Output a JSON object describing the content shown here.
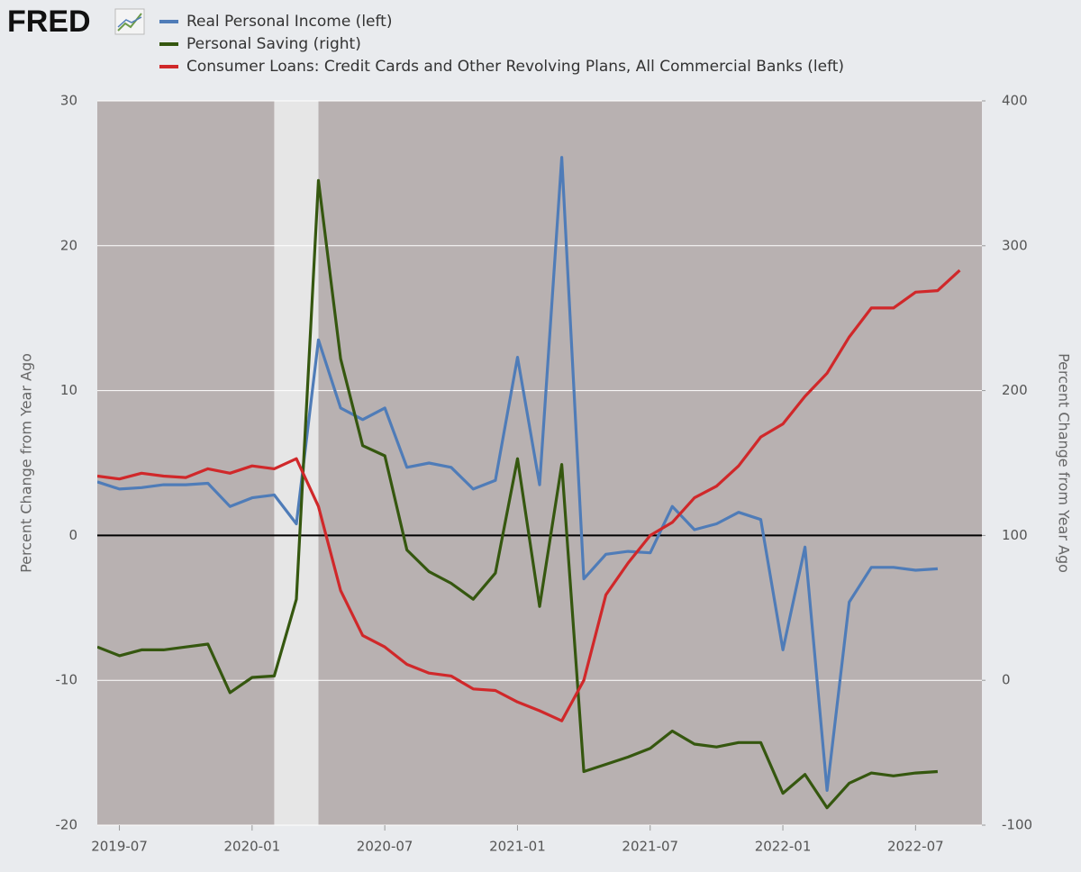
{
  "chart_data": {
    "type": "line",
    "logo": "FRED",
    "ylabel": "Percent Change from Year Ago",
    "y2label": "Percent Change from Year Ago",
    "x": [
      "2019-06",
      "2019-07",
      "2019-08",
      "2019-09",
      "2019-10",
      "2019-11",
      "2019-12",
      "2020-01",
      "2020-02",
      "2020-03",
      "2020-04",
      "2020-05",
      "2020-06",
      "2020-07",
      "2020-08",
      "2020-09",
      "2020-10",
      "2020-11",
      "2020-12",
      "2021-01",
      "2021-02",
      "2021-03",
      "2021-04",
      "2021-05",
      "2021-06",
      "2021-07",
      "2021-08",
      "2021-09",
      "2021-10",
      "2021-11",
      "2021-12",
      "2022-01",
      "2022-02",
      "2022-03",
      "2022-04",
      "2022-05",
      "2022-06",
      "2022-07",
      "2022-08",
      "2022-09"
    ],
    "series": [
      {
        "name": "Real Personal Income (left)",
        "color": "#4f7cb8",
        "axis": "y",
        "values": [
          3.7,
          3.2,
          3.3,
          3.5,
          3.5,
          3.6,
          2.0,
          2.6,
          2.8,
          0.8,
          13.5,
          8.8,
          8.0,
          8.8,
          4.7,
          5.0,
          4.7,
          3.2,
          3.8,
          12.3,
          3.5,
          26.1,
          -3.0,
          -1.3,
          -1.1,
          -1.2,
          2.0,
          0.4,
          0.8,
          1.6,
          1.1,
          -7.9,
          -0.8,
          -17.6,
          -4.6,
          -2.2,
          -2.2,
          -2.4,
          -2.3,
          null
        ]
      },
      {
        "name": "Personal Saving (right)",
        "color": "#35570f",
        "axis": "y2",
        "values": [
          23,
          17,
          21,
          21,
          23,
          25,
          -8.5,
          2,
          3,
          56,
          345,
          222,
          162,
          155,
          90,
          75,
          67,
          56,
          74,
          153,
          51,
          149,
          -63,
          -58,
          -53,
          -47,
          -35,
          -44,
          -46,
          -43,
          -43,
          -78,
          -65,
          -88,
          -71,
          -64,
          -66,
          -64,
          -63,
          null
        ]
      },
      {
        "name": "Consumer Loans: Credit Cards and Other Revolving Plans, All Commercial Banks (left)",
        "color": "#d0282a",
        "axis": "y",
        "values": [
          4.1,
          3.9,
          4.3,
          4.1,
          4.0,
          4.6,
          4.3,
          4.8,
          4.6,
          5.3,
          2.0,
          -3.8,
          -6.9,
          -7.7,
          -8.9,
          -9.5,
          -9.7,
          -10.6,
          -10.7,
          -11.5,
          -12.1,
          -12.8,
          -10.0,
          -4.1,
          -1.9,
          0.0,
          0.9,
          2.6,
          3.4,
          4.8,
          6.8,
          7.7,
          9.6,
          11.2,
          13.7,
          15.7,
          15.7,
          16.8,
          16.9,
          18.3
        ]
      }
    ],
    "xlim": [
      "2019-06",
      "2022-10"
    ],
    "xticks": [
      "2019-07",
      "2020-01",
      "2020-07",
      "2021-01",
      "2021-07",
      "2022-01",
      "2022-07"
    ],
    "ylim": [
      -20,
      30
    ],
    "yticks": [
      -20,
      -10,
      0,
      10,
      20,
      30
    ],
    "y2lim": [
      -100,
      400
    ],
    "y2ticks": [
      -100,
      0,
      100,
      200,
      300,
      400
    ],
    "recessions": [
      {
        "start": "2020-02",
        "end": "2020-04"
      }
    ],
    "grid": true,
    "legend": "top-left"
  }
}
